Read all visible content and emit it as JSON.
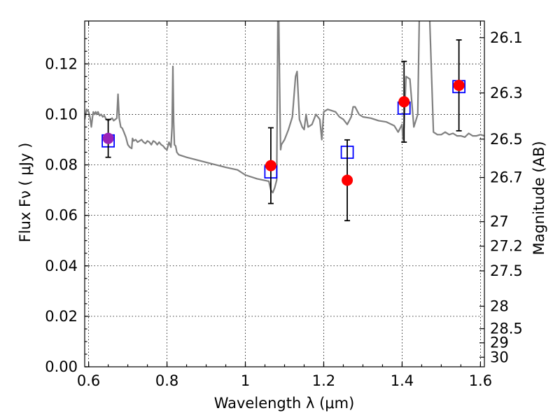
{
  "chart_data": {
    "type": "scatter",
    "xlabel": "Wavelength  λ (μm)",
    "ylabel": "Flux  Fν  ( μJy )",
    "ylabel_right": "Magnitude (AB)",
    "xlim": [
      0.59,
      1.61
    ],
    "ylim": [
      0.0,
      0.137
    ],
    "x_ticks": [
      0.6,
      0.8,
      1.0,
      1.2,
      1.4,
      1.6
    ],
    "x_tick_labels": [
      "0.6",
      "0.8",
      "1",
      "1.2",
      "1.4",
      "1.6"
    ],
    "y_ticks": [
      0.0,
      0.02,
      0.04,
      0.06,
      0.08,
      0.1,
      0.12
    ],
    "y_tick_labels": [
      "0.00",
      "0.02",
      "0.04",
      "0.06",
      "0.08",
      "0.10",
      "0.12"
    ],
    "magnitude_ticks": [
      {
        "flux": 0.1304,
        "label": "26.1"
      },
      {
        "flux": 0.1085,
        "label": "26.3"
      },
      {
        "flux": 0.0902,
        "label": "26.5"
      },
      {
        "flux": 0.075,
        "label": "26.7"
      },
      {
        "flux": 0.0575,
        "label": "27"
      },
      {
        "flux": 0.0478,
        "label": "27.2"
      },
      {
        "flux": 0.038,
        "label": "27.5"
      },
      {
        "flux": 0.024,
        "label": "28"
      },
      {
        "flux": 0.0151,
        "label": "28.5"
      },
      {
        "flux": 0.0095,
        "label": "29"
      },
      {
        "flux": 0.0038,
        "label": "30"
      }
    ],
    "grid": true,
    "colors": {
      "model": "#808080",
      "observed": "#ff0000",
      "synthetic": "#0000ff",
      "errorbar": "#000000",
      "first_point": "#9b22b8"
    },
    "observed": [
      {
        "x": 0.65,
        "y": 0.0905,
        "err": 0.0075
      },
      {
        "x": 1.065,
        "y": 0.0797,
        "err": 0.015
      },
      {
        "x": 1.26,
        "y": 0.0739,
        "err": 0.016
      },
      {
        "x": 1.405,
        "y": 0.105,
        "err": 0.016
      },
      {
        "x": 1.545,
        "y": 0.1115,
        "err": 0.018
      }
    ],
    "synthetic": [
      {
        "x": 0.65,
        "y": 0.0895
      },
      {
        "x": 1.065,
        "y": 0.0772
      },
      {
        "x": 1.26,
        "y": 0.085
      },
      {
        "x": 1.405,
        "y": 0.1025
      },
      {
        "x": 1.545,
        "y": 0.111
      }
    ],
    "model_spectrum": {
      "x": [
        0.59,
        0.595,
        0.6,
        0.604,
        0.607,
        0.61,
        0.612,
        0.615,
        0.618,
        0.62,
        0.624,
        0.628,
        0.632,
        0.636,
        0.64,
        0.645,
        0.65,
        0.655,
        0.66,
        0.664,
        0.668,
        0.672,
        0.675,
        0.678,
        0.682,
        0.686,
        0.69,
        0.695,
        0.7,
        0.705,
        0.71,
        0.712,
        0.715,
        0.72,
        0.725,
        0.73,
        0.735,
        0.74,
        0.745,
        0.75,
        0.755,
        0.76,
        0.765,
        0.77,
        0.775,
        0.78,
        0.785,
        0.79,
        0.795,
        0.8,
        0.805,
        0.81,
        0.813,
        0.815,
        0.817,
        0.819,
        0.822,
        0.825,
        0.83,
        0.85,
        0.9,
        0.95,
        0.98,
        1.0,
        1.03,
        1.06,
        1.065,
        1.07,
        1.075,
        1.08,
        1.083,
        1.085,
        1.089,
        1.09,
        1.092,
        1.1,
        1.11,
        1.12,
        1.128,
        1.132,
        1.138,
        1.145,
        1.15,
        1.155,
        1.16,
        1.17,
        1.18,
        1.19,
        1.195,
        1.2,
        1.21,
        1.23,
        1.24,
        1.25,
        1.26,
        1.27,
        1.275,
        1.28,
        1.29,
        1.3,
        1.32,
        1.34,
        1.36,
        1.38,
        1.39,
        1.4,
        1.402,
        1.405,
        1.41,
        1.42,
        1.43,
        1.44,
        1.444,
        1.447,
        1.45,
        1.46,
        1.47,
        1.48,
        1.49,
        1.5,
        1.51,
        1.52,
        1.53,
        1.54,
        1.55,
        1.56,
        1.57,
        1.58,
        1.59,
        1.6,
        1.61
      ],
      "y": [
        0.098,
        0.102,
        0.101,
        0.0985,
        0.095,
        0.099,
        0.101,
        0.1,
        0.101,
        0.1,
        0.101,
        0.0995,
        0.1,
        0.099,
        0.0995,
        0.098,
        0.0975,
        0.098,
        0.0985,
        0.0975,
        0.098,
        0.0985,
        0.108,
        0.0985,
        0.095,
        0.0945,
        0.093,
        0.091,
        0.088,
        0.087,
        0.0865,
        0.0905,
        0.0895,
        0.09,
        0.089,
        0.0895,
        0.09,
        0.089,
        0.0885,
        0.0895,
        0.089,
        0.088,
        0.0895,
        0.089,
        0.088,
        0.089,
        0.088,
        0.0875,
        0.0865,
        0.086,
        0.089,
        0.087,
        0.095,
        0.119,
        0.097,
        0.088,
        0.0875,
        0.085,
        0.084,
        0.083,
        0.081,
        0.079,
        0.078,
        0.076,
        0.0745,
        0.0735,
        0.07,
        0.069,
        0.071,
        0.074,
        0.14,
        0.14,
        0.095,
        0.086,
        0.088,
        0.09,
        0.094,
        0.099,
        0.115,
        0.117,
        0.098,
        0.095,
        0.094,
        0.1,
        0.095,
        0.096,
        0.1,
        0.098,
        0.09,
        0.101,
        0.102,
        0.101,
        0.099,
        0.098,
        0.096,
        0.099,
        0.103,
        0.103,
        0.1,
        0.099,
        0.0985,
        0.0975,
        0.097,
        0.0955,
        0.093,
        0.096,
        0.09,
        0.095,
        0.115,
        0.114,
        0.095,
        0.1,
        0.14,
        0.14,
        0.14,
        0.14,
        0.14,
        0.093,
        0.092,
        0.092,
        0.093,
        0.092,
        0.0925,
        0.0915,
        0.0915,
        0.091,
        0.0925,
        0.0915,
        0.0915,
        0.092,
        0.0915
      ]
    }
  }
}
